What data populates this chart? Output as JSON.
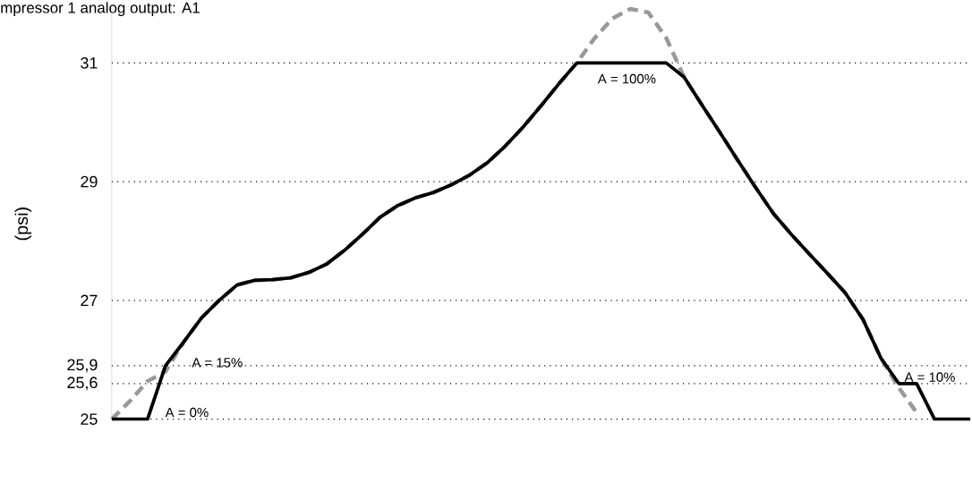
{
  "chart_data": {
    "type": "line",
    "title": "mpressor 1 analog output: A1",
    "ylabel": "(psi)",
    "categories": [
      null,
      null,
      null,
      null,
      null,
      null,
      null,
      null,
      null,
      null,
      null,
      null,
      null,
      null,
      null,
      null,
      null,
      null,
      null,
      null,
      null,
      null,
      null,
      null,
      null,
      null,
      null,
      null,
      null,
      null,
      null,
      null,
      null,
      null,
      null,
      null,
      null,
      null,
      null,
      null,
      null,
      null,
      null,
      null,
      null,
      null,
      null,
      null,
      null
    ],
    "series": [
      {
        "color": "#999999",
        "line_style": "dashed",
        "values": [
          25,
          25.3,
          25.64,
          25.8,
          26.29,
          26.7,
          27.0,
          27.26,
          27.34,
          27.35,
          27.38,
          27.47,
          27.61,
          27.84,
          28.11,
          28.4,
          28.6,
          28.73,
          28.82,
          28.95,
          29.11,
          29.32,
          29.6,
          29.92,
          30.28,
          30.65,
          31,
          31.42,
          31.75,
          31.91,
          31.85,
          31.42,
          30.76,
          30.29,
          29.83,
          29.36,
          28.9,
          28.46,
          28.11,
          27.78,
          27.46,
          27.13,
          26.68,
          26.03,
          25.53,
          25.11,
          null,
          null,
          null
        ]
      },
      {
        "color": "#000000",
        "line_style": "solid",
        "values": [
          25,
          25,
          25,
          25.9,
          26.29,
          26.7,
          27.0,
          27.26,
          27.34,
          27.35,
          27.38,
          27.47,
          27.61,
          27.84,
          28.11,
          28.4,
          28.6,
          28.73,
          28.82,
          28.95,
          29.11,
          29.32,
          29.6,
          29.92,
          30.28,
          30.65,
          31,
          31,
          31,
          31,
          31,
          31,
          30.76,
          30.29,
          29.83,
          29.36,
          28.9,
          28.46,
          28.11,
          27.78,
          27.46,
          27.13,
          26.68,
          26.03,
          25.6,
          25.6,
          25,
          25,
          25
        ]
      }
    ],
    "yticks": [
      25,
      {
        "value": 25.6,
        "label": "25,6"
      },
      {
        "value": 25.9,
        "label": "25,9"
      },
      27,
      29,
      31
    ],
    "ylim": [
      25,
      32
    ],
    "grid": "y",
    "annotations": [
      "A = 15%",
      "A = 0%",
      "A = 100%",
      "A = 10%"
    ]
  }
}
